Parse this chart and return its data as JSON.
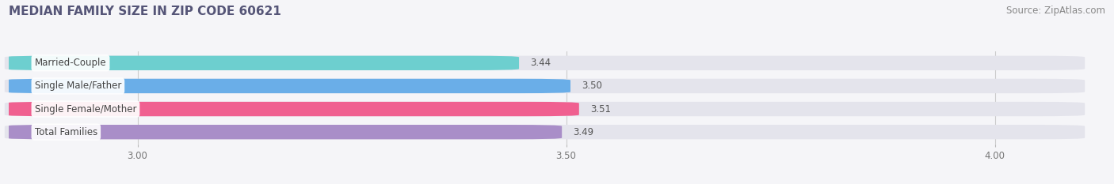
{
  "title": "MEDIAN FAMILY SIZE IN ZIP CODE 60621",
  "source_text": "Source: ZipAtlas.com",
  "categories": [
    "Married-Couple",
    "Single Male/Father",
    "Single Female/Mother",
    "Total Families"
  ],
  "values": [
    3.44,
    3.5,
    3.51,
    3.49
  ],
  "bar_colors": [
    "#6dcfcf",
    "#6aaee8",
    "#f06090",
    "#a98ec8"
  ],
  "xlim": [
    2.85,
    4.1
  ],
  "xticks": [
    3.0,
    3.5,
    4.0
  ],
  "xtick_labels": [
    "3.00",
    "3.50",
    "4.00"
  ],
  "background_color": "#f5f5f8",
  "bar_background_color": "#e4e4ec",
  "title_fontsize": 11,
  "source_fontsize": 8.5,
  "label_fontsize": 8.5,
  "value_fontsize": 8.5,
  "tick_fontsize": 8.5,
  "bar_height": 0.62,
  "bar_gap": 0.38
}
